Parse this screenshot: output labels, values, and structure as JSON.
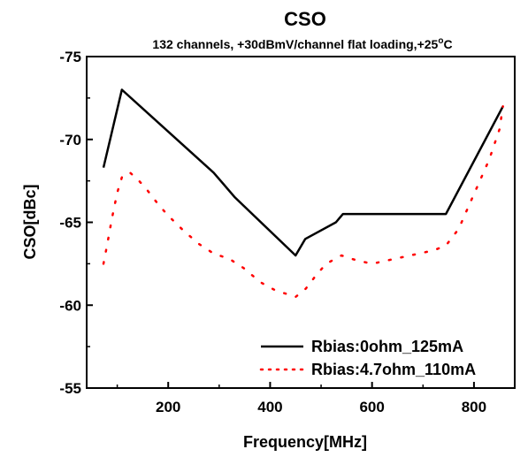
{
  "chart_data": {
    "type": "line",
    "title": "CSO",
    "subtitle_main": "132 channels, +30dBmV/channel flat loading,+25",
    "subtitle_deg": "o",
    "subtitle_unit": "C",
    "xlabel": "Frequency[MHz]",
    "ylabel": "CSO[dBc]",
    "xlim": [
      40,
      880
    ],
    "ylim": [
      -55,
      -75
    ],
    "y_inverted": true,
    "xticks": [
      200,
      400,
      600,
      800
    ],
    "xtick_labels": [
      "200",
      "400",
      "600",
      "800"
    ],
    "yticks": [
      -75,
      -70,
      -65,
      -60,
      -55
    ],
    "ytick_labels": [
      "-75",
      "-70",
      "-65",
      "-60",
      "-55"
    ],
    "grid": false,
    "legend_position": "bottom-right",
    "series": [
      {
        "name": "Rbias:0ohm_125mA",
        "style": "solid",
        "color": "#000000",
        "x": [
          73,
          109,
          289,
          331,
          450,
          469,
          529,
          543,
          745,
          857
        ],
        "y": [
          -68.3,
          -73.0,
          -68.0,
          -66.5,
          -63.0,
          -64.0,
          -65.0,
          -65.5,
          -65.5,
          -72.0
        ]
      },
      {
        "name": "Rbias:4.7ohm_110mA",
        "style": "dotted",
        "color": "#ff0000",
        "x": [
          73,
          80,
          90,
          100,
          110,
          125,
          140,
          160,
          180,
          200,
          230,
          260,
          290,
          320,
          350,
          380,
          410,
          430,
          450,
          470,
          490,
          510,
          540,
          570,
          600,
          630,
          660,
          690,
          720,
          745,
          770,
          790,
          810,
          830,
          850,
          857
        ],
        "y": [
          -62.5,
          -63.6,
          -65.3,
          -66.8,
          -67.8,
          -68.0,
          -67.6,
          -66.9,
          -66.1,
          -65.4,
          -64.5,
          -63.7,
          -63.1,
          -62.8,
          -62.2,
          -61.4,
          -60.9,
          -60.7,
          -60.5,
          -61.0,
          -61.8,
          -62.5,
          -63.0,
          -62.7,
          -62.5,
          -62.7,
          -62.9,
          -63.1,
          -63.3,
          -63.6,
          -64.6,
          -66.0,
          -67.4,
          -68.8,
          -70.6,
          -72.0
        ]
      }
    ]
  }
}
